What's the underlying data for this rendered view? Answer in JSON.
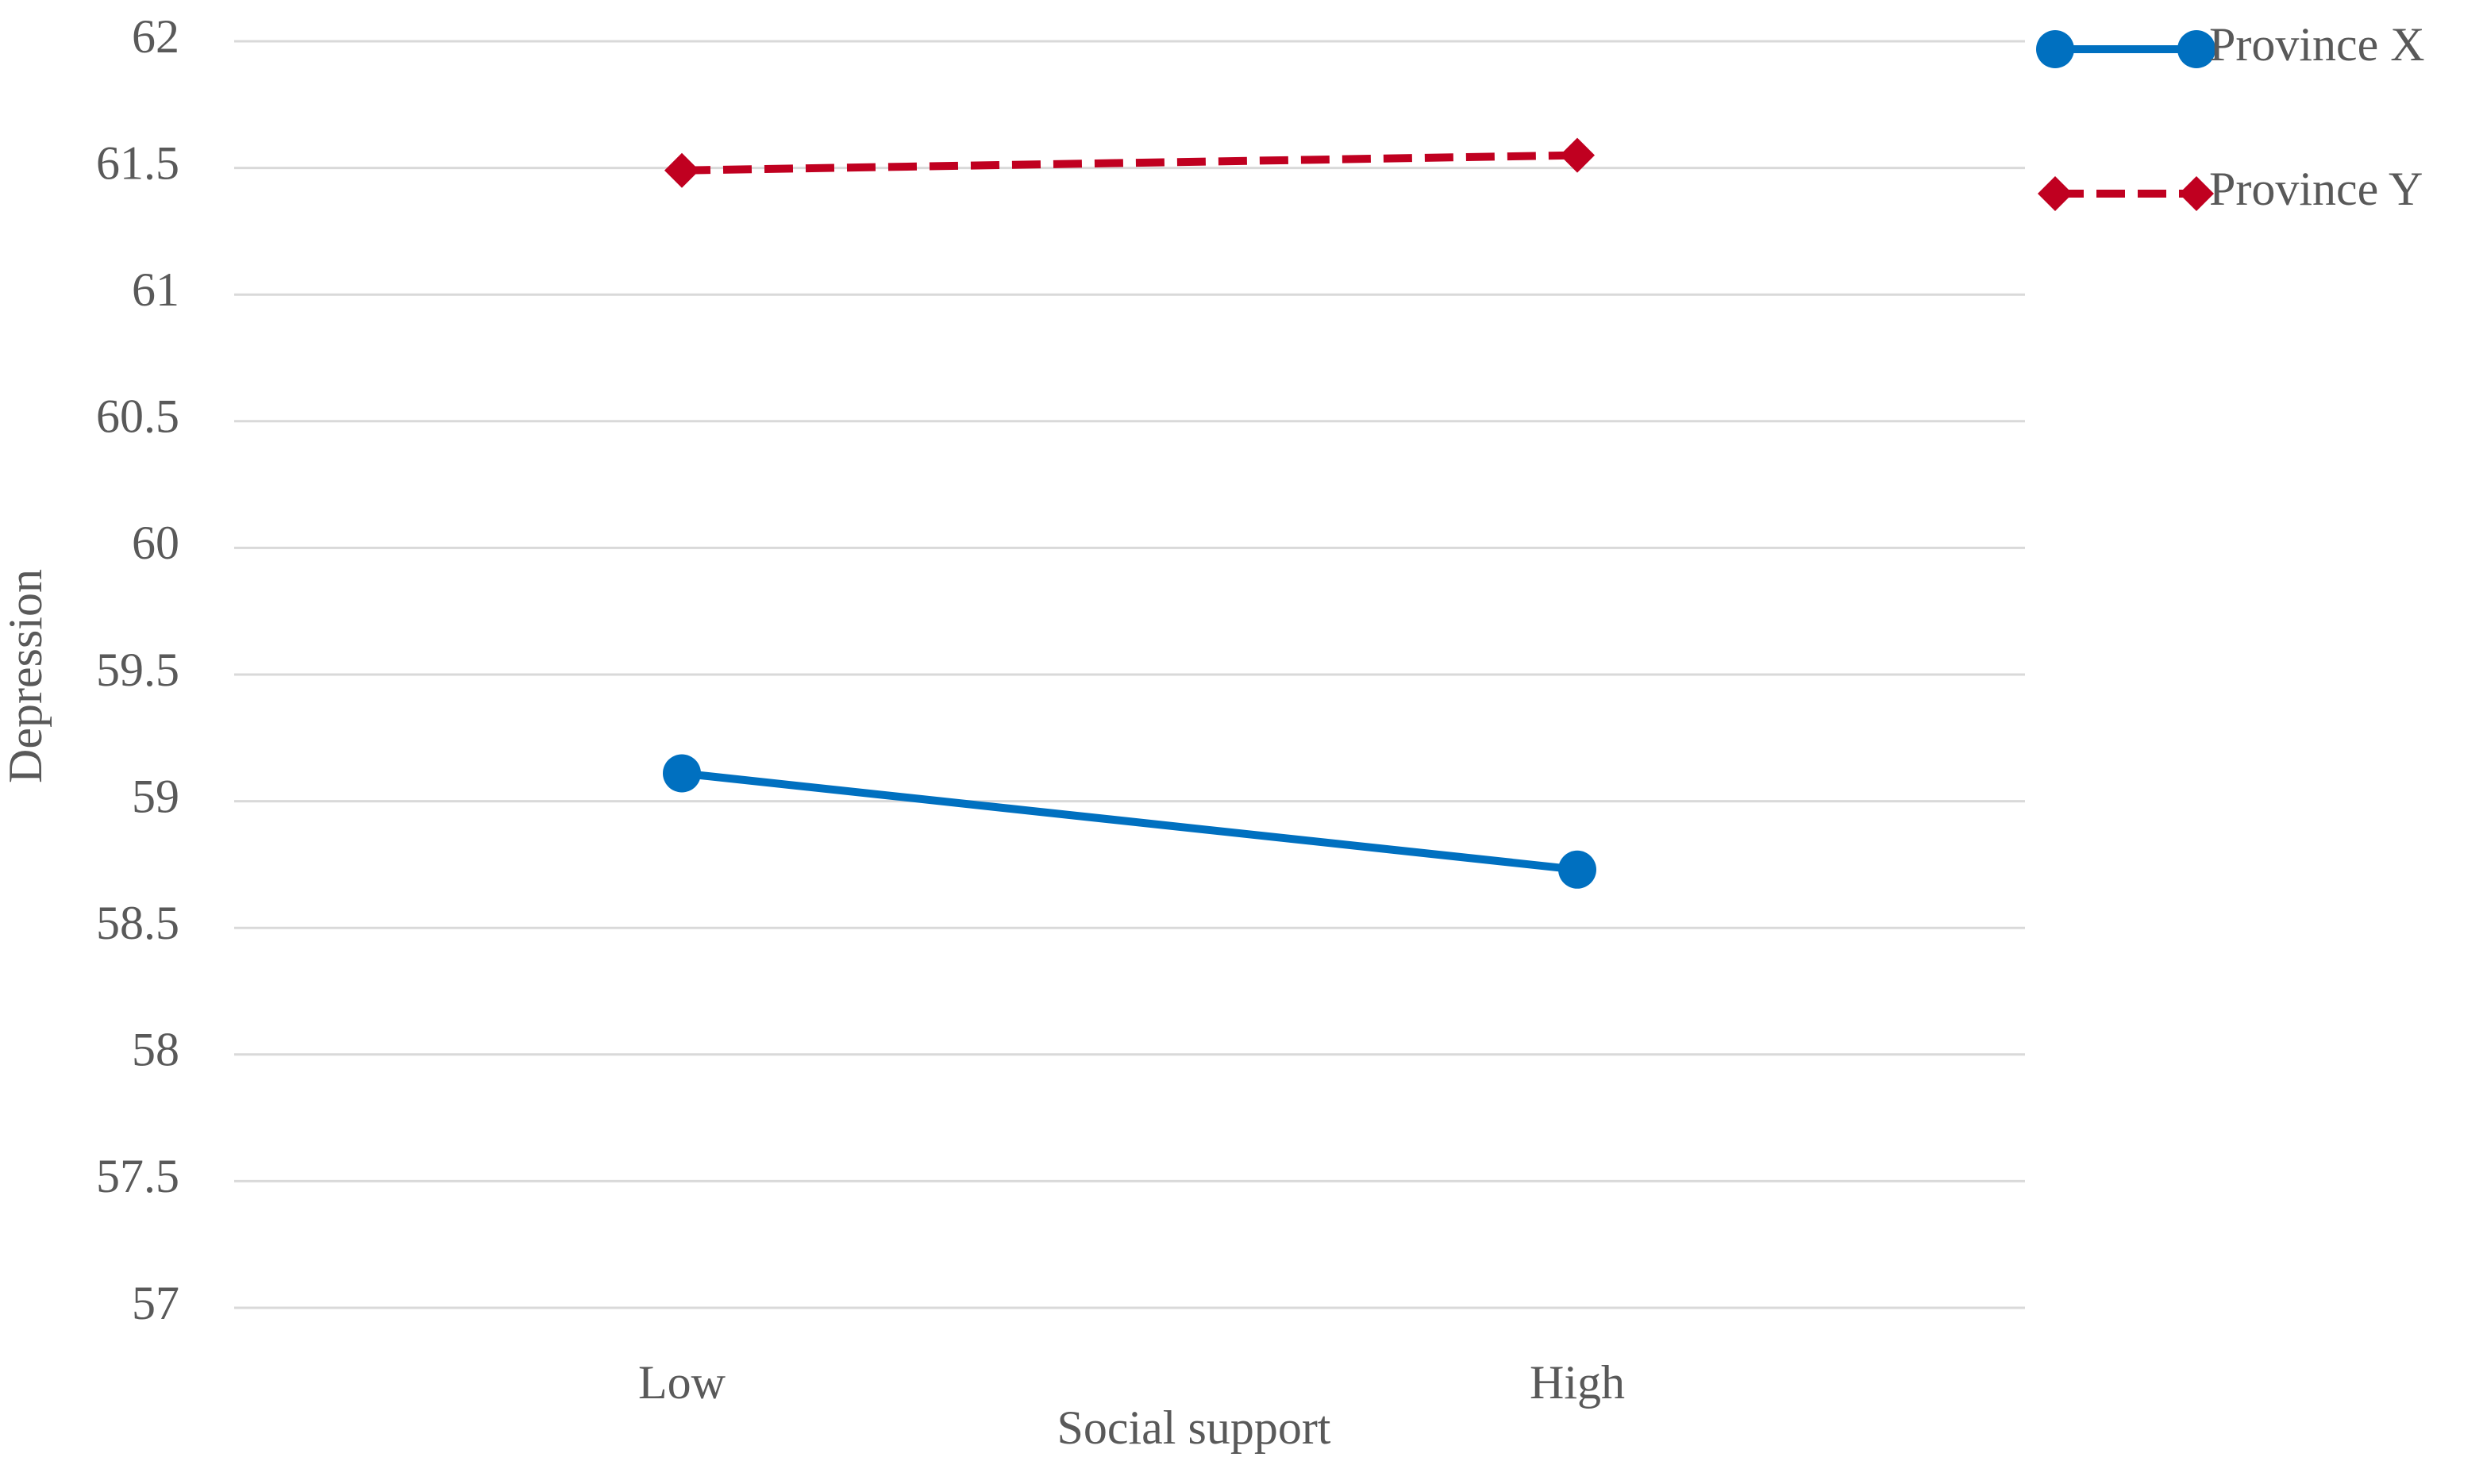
{
  "chart_data": {
    "type": "line",
    "x_label": "Social support",
    "y_label": "Depression",
    "categories": [
      "Low",
      "High"
    ],
    "series": [
      {
        "name": "Province X",
        "color": "#0070c0",
        "dash": "solid",
        "marker": "circle",
        "values": [
          59.11,
          58.73
        ]
      },
      {
        "name": "Province Y",
        "color": "#c00020",
        "dash": "dashed",
        "marker": "diamond",
        "values": [
          61.49,
          61.55
        ]
      }
    ],
    "ylim": [
      57,
      62
    ],
    "yticks": [
      57,
      57.5,
      58,
      58.5,
      59,
      59.5,
      60,
      60.5,
      61,
      61.5,
      62
    ],
    "grid": true,
    "legend": "top-right"
  }
}
